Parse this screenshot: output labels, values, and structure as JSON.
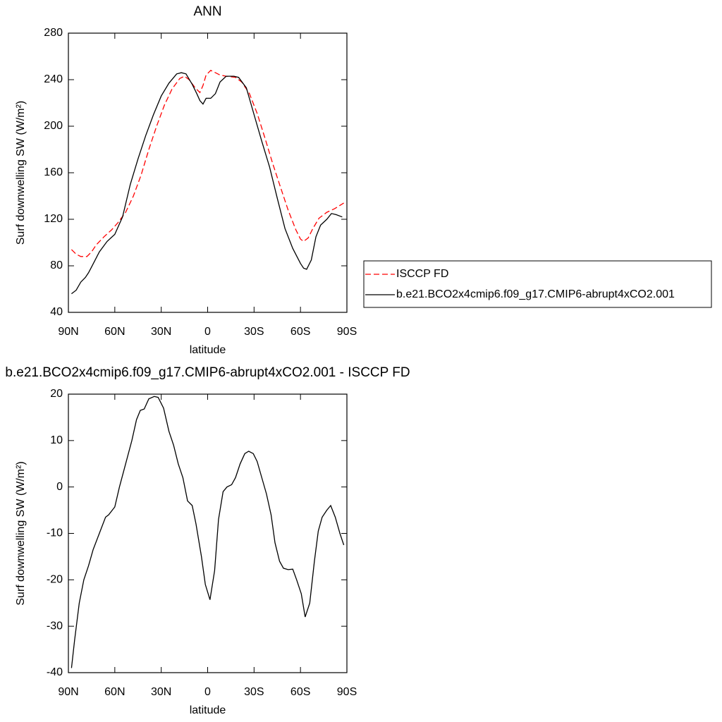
{
  "chart_data": [
    {
      "type": "line",
      "title": "ANN",
      "xlabel": "latitude",
      "ylabel": "Surf downwelling SW (W/m²)",
      "xlim": [
        90,
        -90
      ],
      "xticks": [
        {
          "value": 90,
          "label": "90N"
        },
        {
          "value": 60,
          "label": "60N"
        },
        {
          "value": 30,
          "label": "30N"
        },
        0,
        {
          "value": -30,
          "label": "30S"
        },
        {
          "value": -60,
          "label": "60S"
        },
        {
          "value": -90,
          "label": "90S"
        }
      ],
      "ylim": [
        40,
        280
      ],
      "yticks": [
        40,
        80,
        120,
        160,
        200,
        240,
        280
      ],
      "legend": "outside-right",
      "series": [
        {
          "name": "ISCCP FD",
          "color": "#ff0000",
          "dashed": true,
          "x": [
            88,
            85,
            82,
            78,
            75,
            72,
            67,
            62,
            58,
            53,
            48,
            43,
            38,
            33,
            28,
            23,
            18,
            15,
            12,
            8,
            5,
            3,
            1,
            -2,
            -5,
            -8,
            -12,
            -18,
            -22,
            -27,
            -32,
            -37,
            -42,
            -47,
            -52,
            -57,
            -60,
            -62,
            -65,
            -68,
            -72,
            -77,
            -82,
            -88
          ],
          "values": [
            94,
            90,
            88,
            88,
            92,
            98,
            105,
            111,
            117,
            126,
            140,
            158,
            180,
            200,
            218,
            232,
            241,
            243,
            240,
            233,
            229,
            235,
            244,
            248,
            246,
            244,
            243,
            242,
            238,
            228,
            211,
            190,
            168,
            148,
            128,
            111,
            103,
            101,
            104,
            112,
            121,
            126,
            129,
            134
          ]
        },
        {
          "name": "b.e21.BCO2x4cmip6.f09_g17.CMIP6-abrupt4xCO2.001",
          "color": "#000000",
          "dashed": false,
          "x": [
            88,
            85,
            82,
            79,
            77,
            75,
            70,
            65,
            60,
            55,
            50,
            45,
            40,
            35,
            30,
            25,
            20,
            17,
            14,
            10,
            7,
            5,
            3,
            1,
            -2,
            -5,
            -8,
            -12,
            -17,
            -20,
            -25,
            -30,
            -35,
            -40,
            -45,
            -50,
            -55,
            -60,
            -62,
            -64,
            -67,
            -70,
            -73,
            -77,
            -80,
            -83,
            -87
          ],
          "values": [
            56,
            59,
            66,
            70,
            74,
            79,
            92,
            101,
            107,
            122,
            150,
            172,
            192,
            210,
            226,
            237,
            245,
            246,
            245,
            236,
            228,
            222,
            219,
            224,
            224,
            228,
            238,
            243,
            243,
            242,
            233,
            210,
            187,
            165,
            138,
            112,
            95,
            82,
            78,
            77,
            85,
            105,
            115,
            120,
            125,
            124,
            122
          ]
        }
      ]
    },
    {
      "type": "line",
      "title": "b.e21.BCO2x4cmip6.f09_g17.CMIP6-abrupt4xCO2.001 - ISCCP FD",
      "xlabel": "latitude",
      "ylabel": "Surf downwelling SW (W/m²)",
      "xlim": [
        90,
        -90
      ],
      "xticks": [
        {
          "value": 90,
          "label": "90N"
        },
        {
          "value": 60,
          "label": "60N"
        },
        {
          "value": 30,
          "label": "30N"
        },
        0,
        {
          "value": -30,
          "label": "30S"
        },
        {
          "value": -60,
          "label": "60S"
        },
        {
          "value": -90,
          "label": "90S"
        }
      ],
      "ylim": [
        -40,
        20
      ],
      "yticks": [
        -40,
        -30,
        -20,
        -10,
        0,
        10,
        20
      ],
      "series": [
        {
          "color": "#000000",
          "dashed": false,
          "x": [
            88,
            86,
            83,
            80,
            77,
            74,
            70,
            66,
            64,
            60,
            57,
            53,
            49,
            46,
            43.5,
            41,
            38,
            34.5,
            32,
            28.5,
            25,
            22,
            19,
            16,
            13,
            10,
            7.5,
            4,
            1.5,
            -1.5,
            -4.5,
            -7,
            -10,
            -12.5,
            -15.5,
            -18,
            -21,
            -24,
            -26.5,
            -29.5,
            -32,
            -35,
            -38,
            -41,
            -43.5,
            -46.5,
            -49,
            -52,
            -55,
            -57.5,
            -60.5,
            -63,
            -66,
            -69,
            -71.5,
            -74,
            -77,
            -79.5,
            -82.5,
            -85.5,
            -88
          ],
          "values": [
            -39,
            -33,
            -25,
            -20,
            -17,
            -13.5,
            -10,
            -6.5,
            -6,
            -4.3,
            0,
            5,
            10,
            14.5,
            16.5,
            16.8,
            19,
            19.5,
            19.3,
            17,
            12,
            9,
            5,
            2,
            -3,
            -4,
            -8,
            -15,
            -21,
            -24.3,
            -18,
            -7,
            -1,
            0,
            0.5,
            2,
            5,
            7.2,
            7.7,
            7.2,
            5.5,
            2,
            -1.5,
            -6,
            -12,
            -16,
            -17.5,
            -17.8,
            -17.7,
            -20,
            -23,
            -28,
            -25,
            -16,
            -9.5,
            -6.5,
            -5,
            -4,
            -6.5,
            -10,
            -12.5
          ]
        }
      ]
    }
  ]
}
